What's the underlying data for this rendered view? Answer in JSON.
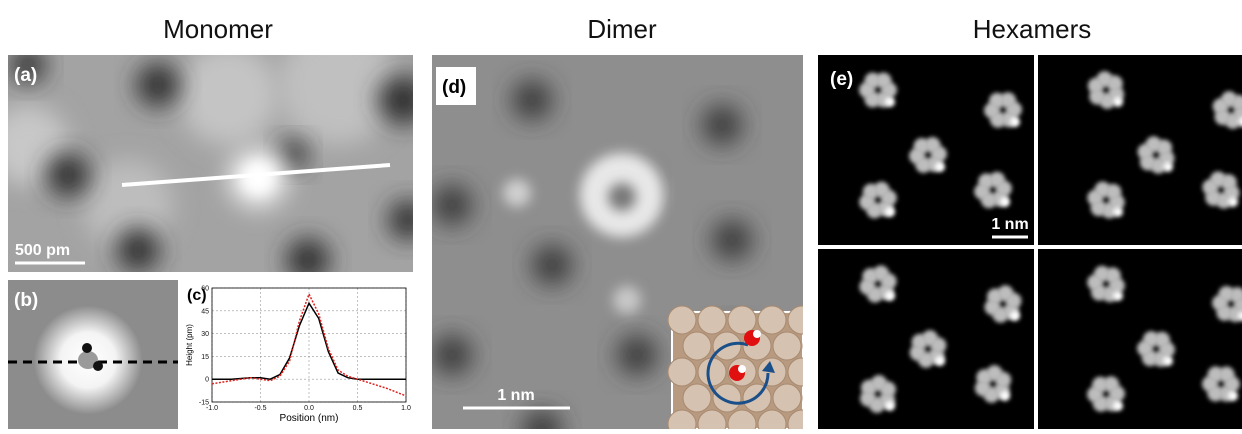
{
  "columns": [
    {
      "title": "Monomer"
    },
    {
      "title": "Dimer"
    },
    {
      "title": "Hexamers"
    }
  ],
  "panels": [
    {
      "label": "(a)",
      "scale_bar": "500 pm"
    },
    {
      "label": "(b)"
    },
    {
      "label": "(d)",
      "scale_bar": "1 nm"
    },
    {
      "label": "(e)",
      "scale_bar": "1 nm"
    }
  ],
  "chart_data": {
    "type": "line",
    "panel_label": "(c)",
    "x_label": "Position (nm)",
    "y_label": "Height (pm)",
    "x": [
      -1.0,
      -0.8,
      -0.6,
      -0.5,
      -0.4,
      -0.3,
      -0.2,
      -0.1,
      0,
      0.1,
      0.2,
      0.3,
      0.4,
      0.5,
      0.6,
      0.8,
      1.0
    ],
    "series": [
      {
        "color": "#000000",
        "dash": false,
        "values": [
          0,
          0,
          1,
          1,
          0,
          3,
          14,
          35,
          50,
          40,
          18,
          4,
          1,
          0,
          0,
          0,
          0
        ]
      },
      {
        "color": "#e0201c",
        "dash": true,
        "values": [
          -3,
          -1,
          1,
          0,
          -1,
          2,
          12,
          38,
          56,
          43,
          20,
          6,
          2,
          0,
          -2,
          -6,
          -11
        ]
      }
    ],
    "xlim": [
      -1.0,
      1.0
    ],
    "xticks": [
      {
        "value": -1.0,
        "label": "-1.0"
      },
      {
        "value": -0.5,
        "label": "-0.5"
      },
      {
        "value": 0,
        "label": "0.0"
      },
      {
        "value": 0.5,
        "label": "0.5"
      },
      {
        "value": 1.0,
        "label": "1.0"
      }
    ],
    "ylim": [
      -15,
      60
    ],
    "yticks": [
      -15,
      0,
      15,
      30,
      45,
      60
    ],
    "grid": true
  }
}
